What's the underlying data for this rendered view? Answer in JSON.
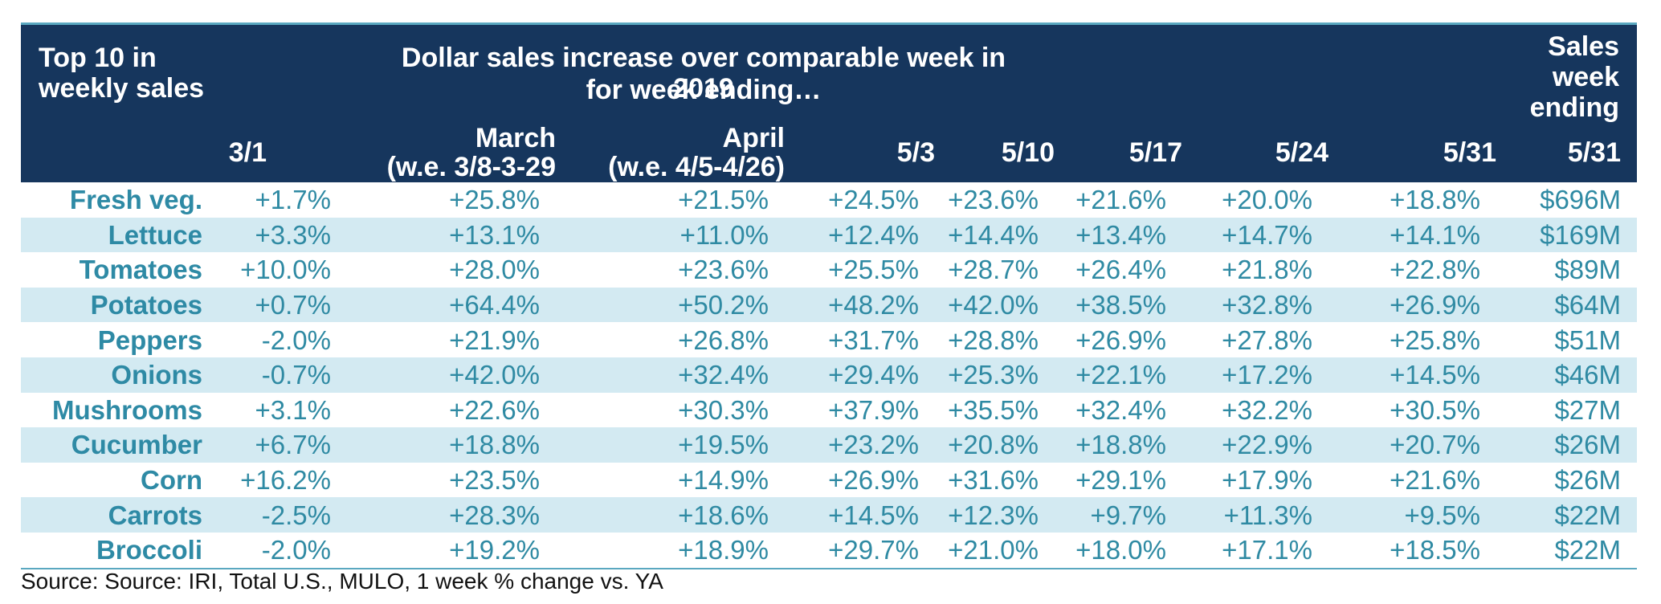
{
  "header": {
    "top10": "Top 10 in weekly sales",
    "dollar_title_line1": "Dollar sales increase over comparable week in 2019",
    "dollar_title_line2": "for week ending…",
    "sales_week_ending": "Sales week ending",
    "columns": [
      "3/1",
      "March",
      "(w.e. 3/8-3-29",
      "April",
      "(w.e. 4/5-4/26)",
      "5/3",
      "5/10",
      "5/17",
      "5/24",
      "5/31",
      "5/31"
    ]
  },
  "rows": [
    {
      "name": "Fresh veg.",
      "values": [
        "+1.7%",
        "+25.8%",
        "+21.5%",
        "+24.5%",
        "+23.6%",
        "+21.6%",
        "+20.0%",
        "+18.8%",
        "$696M"
      ]
    },
    {
      "name": "Lettuce",
      "values": [
        "+3.3%",
        "+13.1%",
        "+11.0%",
        "+12.4%",
        "+14.4%",
        "+13.4%",
        "+14.7%",
        "+14.1%",
        "$169M"
      ]
    },
    {
      "name": "Tomatoes",
      "values": [
        "+10.0%",
        "+28.0%",
        "+23.6%",
        "+25.5%",
        "+28.7%",
        "+26.4%",
        "+21.8%",
        "+22.8%",
        "$89M"
      ]
    },
    {
      "name": "Potatoes",
      "values": [
        "+0.7%",
        "+64.4%",
        "+50.2%",
        "+48.2%",
        "+42.0%",
        "+38.5%",
        "+32.8%",
        "+26.9%",
        "$64M"
      ]
    },
    {
      "name": "Peppers",
      "values": [
        "-2.0%",
        "+21.9%",
        "+26.8%",
        "+31.7%",
        "+28.8%",
        "+26.9%",
        "+27.8%",
        "+25.8%",
        "$51M"
      ]
    },
    {
      "name": "Onions",
      "values": [
        "-0.7%",
        "+42.0%",
        "+32.4%",
        "+29.4%",
        "+25.3%",
        "+22.1%",
        "+17.2%",
        "+14.5%",
        "$46M"
      ]
    },
    {
      "name": "Mushrooms",
      "values": [
        "+3.1%",
        "+22.6%",
        "+30.3%",
        "+37.9%",
        "+35.5%",
        "+32.4%",
        "+32.2%",
        "+30.5%",
        "$27M"
      ]
    },
    {
      "name": "Cucumber",
      "values": [
        "+6.7%",
        "+18.8%",
        "+19.5%",
        "+23.2%",
        "+20.8%",
        "+18.8%",
        "+22.9%",
        "+20.7%",
        "$26M"
      ]
    },
    {
      "name": "Corn",
      "values": [
        "+16.2%",
        "+23.5%",
        "+14.9%",
        "+26.9%",
        "+31.6%",
        "+29.1%",
        "+17.9%",
        "+21.6%",
        "$26M"
      ]
    },
    {
      "name": "Carrots",
      "values": [
        "-2.5%",
        "+28.3%",
        "+18.6%",
        "+14.5%",
        "+12.3%",
        "+9.7%",
        "+11.3%",
        "+9.5%",
        "$22M"
      ]
    },
    {
      "name": "Broccoli",
      "values": [
        "-2.0%",
        "+19.2%",
        "+18.9%",
        "+29.7%",
        "+21.0%",
        "+18.0%",
        "+17.1%",
        "+18.5%",
        "$22M"
      ]
    }
  ],
  "source": "Source: Source: IRI, Total U.S., MULO, 1 week % change vs. YA",
  "colors": {
    "header_bg": "#16365d",
    "alt_row_bg": "#d3eaf2",
    "text_teal": "#2f8aa3",
    "rule": "#5aa8c0"
  }
}
